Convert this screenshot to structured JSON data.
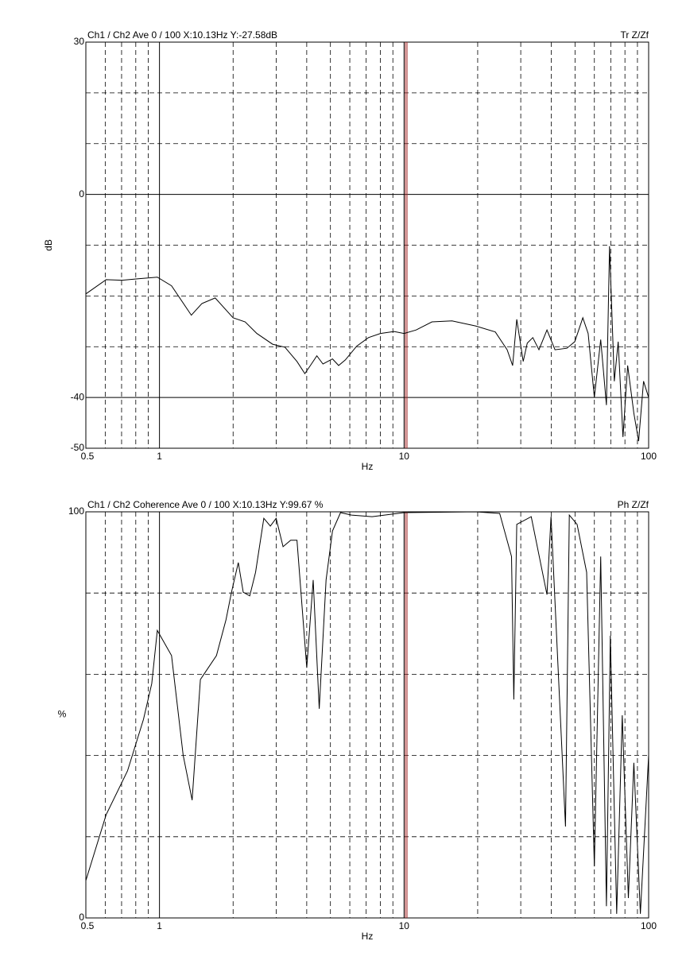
{
  "chart_data": [
    {
      "type": "line",
      "title": "Ch1 / Ch2  Ave 0 / 100  X:10.13Hz  Y:-27.58dB",
      "trace_label": "Tr Z/Zf",
      "y_label": "dB",
      "x_label": "Hz",
      "xlog": true,
      "xlim": [
        0.5,
        100
      ],
      "xticks": [
        0.5,
        1,
        10,
        100
      ],
      "xminor": [
        0.6,
        0.7,
        0.8,
        0.9,
        2,
        3,
        4,
        5,
        6,
        7,
        8,
        9,
        20,
        30,
        40,
        50,
        60,
        70,
        80,
        90
      ],
      "ylim": [
        -50,
        30
      ],
      "yticks": [
        -50,
        -40,
        0,
        30
      ],
      "yminor": [
        -30,
        -20,
        -10,
        10,
        20
      ],
      "cursor_x": 10.13,
      "cursor_color": "#a52a2a",
      "color": "#000000",
      "x": [
        0.5,
        0.605,
        0.703,
        0.82,
        0.98,
        1.12,
        1.35,
        1.49,
        1.69,
        2.0,
        2.24,
        2.5,
        2.9,
        3.26,
        3.65,
        3.93,
        4.14,
        4.4,
        4.66,
        5.1,
        5.4,
        5.75,
        6.4,
        7.15,
        8.0,
        9.1,
        10.0,
        11.2,
        13.0,
        15.7,
        19.6,
        23.6,
        26.4,
        27.8,
        28.9,
        30.7,
        31.9,
        33.6,
        35.6,
        38.4,
        41.4,
        46.3,
        49.9,
        53.8,
        56.6,
        60.0,
        63.7,
        67.2,
        69.2,
        72.4,
        75.1,
        78.5,
        82.1,
        87.0,
        91.0,
        95.3,
        100
      ],
      "values": [
        -19.6,
        -16.8,
        -16.9,
        -16.6,
        -16.3,
        -18.0,
        -23.8,
        -21.5,
        -20.4,
        -24.3,
        -25.1,
        -27.4,
        -29.5,
        -30.1,
        -32.9,
        -35.3,
        -33.7,
        -31.8,
        -33.4,
        -32.4,
        -33.7,
        -32.6,
        -29.9,
        -28.2,
        -27.4,
        -27.0,
        -27.4,
        -26.7,
        -25.1,
        -24.9,
        -25.9,
        -27.1,
        -30.6,
        -33.7,
        -24.6,
        -32.9,
        -29.3,
        -28.2,
        -30.6,
        -26.7,
        -30.6,
        -30.3,
        -29.0,
        -24.3,
        -27.4,
        -40.0,
        -28.6,
        -41.5,
        -10.2,
        -36.8,
        -29.0,
        -47.8,
        -33.7,
        -43.1,
        -48.6,
        -36.8,
        -40.0
      ]
    },
    {
      "type": "line",
      "title": "Ch1 / Ch2  Coherence Ave 0 / 100  X:10.13Hz  Y:99.67 %",
      "trace_label": "Ph Z/Zf",
      "y_label": "%",
      "x_label": "Hz",
      "xlog": true,
      "xlim": [
        0.5,
        100
      ],
      "xticks": [
        0.5,
        1,
        10,
        100
      ],
      "xminor": [
        0.6,
        0.7,
        0.8,
        0.9,
        2,
        3,
        4,
        5,
        6,
        7,
        8,
        9,
        20,
        30,
        40,
        50,
        60,
        70,
        80,
        90
      ],
      "ylim": [
        0,
        100
      ],
      "yticks": [
        0,
        100
      ],
      "yminor": [
        20,
        40,
        60,
        80
      ],
      "cursor_x": 10.13,
      "cursor_color": "#a52a2a",
      "color": "#000000",
      "x": [
        0.5,
        0.605,
        0.74,
        0.86,
        0.93,
        0.98,
        1.12,
        1.25,
        1.36,
        1.47,
        1.71,
        1.87,
        1.97,
        2.1,
        2.2,
        2.34,
        2.47,
        2.67,
        2.84,
        3.0,
        3.2,
        3.44,
        3.65,
        4.0,
        4.25,
        4.5,
        4.8,
        5.1,
        5.5,
        6.1,
        7.4,
        10,
        19.6,
        24.6,
        27.5,
        28.1,
        28.9,
        33.1,
        38.4,
        39.9,
        45.7,
        47.4,
        51.0,
        55.8,
        60.0,
        63.7,
        67.2,
        69.7,
        74.0,
        78.0,
        82.6,
        87.0,
        92.5,
        100
      ],
      "values": [
        9.2,
        25.4,
        36.2,
        48.9,
        57.7,
        70.8,
        64.6,
        40.1,
        29.0,
        58.7,
        64.6,
        73.4,
        80.2,
        87.5,
        80.2,
        79.3,
        85.1,
        98.4,
        96.5,
        98.4,
        91.4,
        93.0,
        93.0,
        61.6,
        83.2,
        51.5,
        83.2,
        95.3,
        99.8,
        99.2,
        98.8,
        99.8,
        100,
        99.6,
        89.0,
        53.8,
        96.9,
        98.8,
        79.6,
        98.8,
        22.5,
        99.2,
        96.9,
        85.1,
        12.7,
        89.0,
        2.9,
        69.5,
        1.0,
        49.9,
        4.9,
        38.2,
        1.0,
        40.1
      ]
    }
  ]
}
